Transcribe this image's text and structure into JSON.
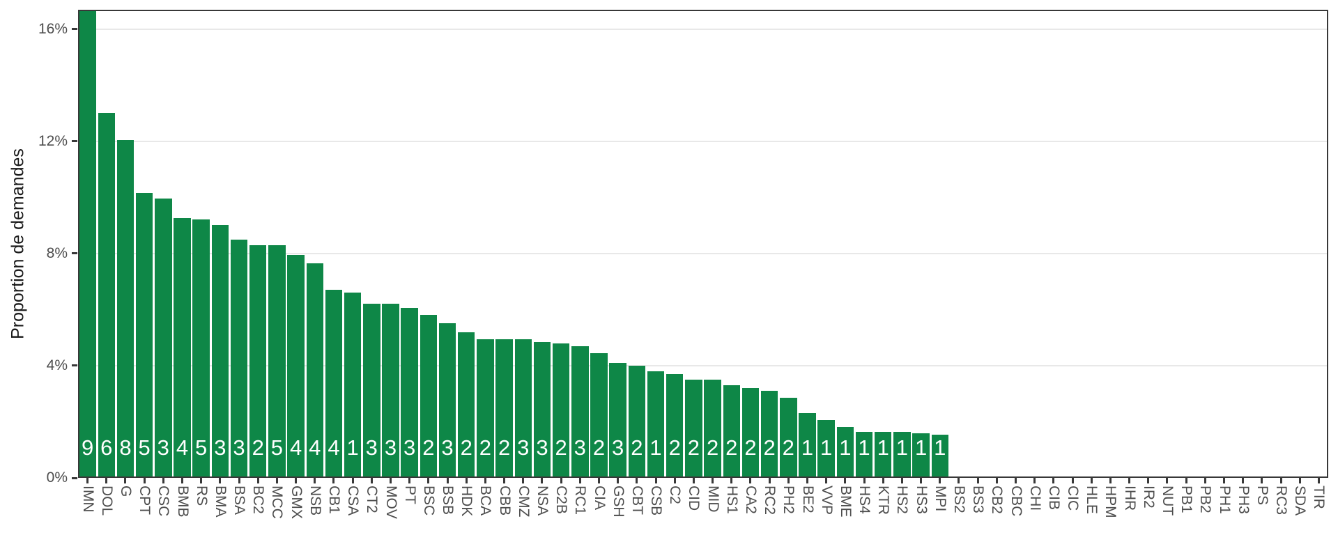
{
  "chart_data": {
    "type": "bar",
    "title": "",
    "xlabel": "",
    "ylabel": "Proportion de demandes",
    "legend": "none",
    "grid": "horizontal-major-only",
    "ylim_percent": [
      0,
      16.7
    ],
    "y_ticks": [
      "0%",
      "4%",
      "8%",
      "12%",
      "16%"
    ],
    "y_tick_values": [
      0,
      4,
      8,
      12,
      16
    ],
    "y_gridline_values": [
      4,
      8,
      12,
      16
    ],
    "categories": [
      "IMN",
      "DOL",
      "G",
      "CPT",
      "CSC",
      "BMB",
      "RS",
      "BMA",
      "BSA",
      "BC2",
      "MCC",
      "GMX",
      "NSB",
      "CB1",
      "CSA",
      "CT2",
      "MOV",
      "PT",
      "BSC",
      "BSB",
      "HDK",
      "BCA",
      "CBB",
      "CMZ",
      "NSA",
      "C2B",
      "RC1",
      "CIA",
      "GSH",
      "CBT",
      "CSB",
      "C2",
      "CID",
      "MID",
      "HS1",
      "CA2",
      "RC2",
      "PH2",
      "BE2",
      "VVP",
      "BME",
      "HS4",
      "KTR",
      "HS2",
      "HS3",
      "MPI",
      "BS2",
      "BS3",
      "CB2",
      "CBC",
      "CHI",
      "CIB",
      "CIC",
      "HLE",
      "HPM",
      "IHR",
      "IR2",
      "NUT",
      "PB1",
      "PB2",
      "PH1",
      "PH3",
      "PS",
      "RC3",
      "SDA",
      "TIR"
    ],
    "values_percent": [
      16.7,
      13.0,
      12.05,
      10.15,
      9.95,
      9.25,
      9.2,
      9.0,
      8.5,
      8.3,
      8.3,
      7.95,
      7.65,
      6.7,
      6.6,
      6.2,
      6.2,
      6.05,
      5.8,
      5.5,
      5.2,
      4.95,
      4.95,
      4.95,
      4.85,
      4.8,
      4.7,
      4.45,
      4.1,
      4.0,
      3.8,
      3.7,
      3.5,
      3.5,
      3.3,
      3.2,
      3.1,
      2.85,
      2.3,
      2.05,
      1.8,
      1.65,
      1.65,
      1.65,
      1.6,
      1.55,
      0,
      0,
      0,
      0,
      0,
      0,
      0,
      0,
      0,
      0,
      0,
      0,
      0,
      0,
      0,
      0,
      0,
      0,
      0,
      0
    ],
    "bar_labels": [
      "9",
      "6",
      "8",
      "5",
      "3",
      "4",
      "5",
      "3",
      "3",
      "2",
      "5",
      "4",
      "4",
      "4",
      "1",
      "3",
      "3",
      "3",
      "2",
      "3",
      "2",
      "2",
      "2",
      "3",
      "3",
      "2",
      "3",
      "2",
      "3",
      "2",
      "1",
      "2",
      "2",
      "2",
      "2",
      "2",
      "2",
      "2",
      "1",
      "1",
      "1",
      "1",
      "1",
      "1",
      "1",
      "1",
      "",
      "",
      "",
      "",
      "",
      "",
      "",
      "",
      "",
      "",
      "",
      "",
      "",
      "",
      "",
      "",
      "",
      "",
      "",
      ""
    ],
    "colors": {
      "bar": "#0E8747",
      "panel_border": "#383838",
      "tick": "#383838",
      "gridline": "#E8E8E8",
      "tick_text": "#4D4D4D",
      "axis_title_text": "#1A1A1A",
      "bar_label_text": "#FFFFFF",
      "background": "#FFFFFF"
    }
  }
}
